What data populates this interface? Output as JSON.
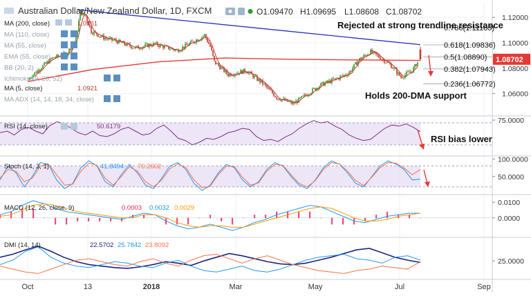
{
  "header": {
    "symbol": "Australian Dollar/New Zealand Dollar, 1D, FXCM",
    "ohlc": {
      "open": "O1.09470",
      "high": "H1.09695",
      "low": "L1.08608",
      "close": "C1.08702"
    }
  },
  "indicators": {
    "ma200": {
      "label": "MA (200, close)",
      "value": "1.0861"
    },
    "ma110": {
      "label": "MA (110, close)"
    },
    "ma55": {
      "label": "MA (55, close)"
    },
    "ema": {
      "label": "EMA (55, close)"
    },
    "bb": {
      "label": "BB (20, 2)"
    },
    "ichimoku": {
      "label": "Ichimoku (9, 26, 52)"
    },
    "ma5": {
      "label": "MA (5, close)",
      "value": "1.0921"
    },
    "maadx": {
      "label": "MA ADX (14, 14, 18, 34, close)"
    }
  },
  "annotations": {
    "trendline": "Rejected at strong trendline resistance",
    "support": "Holds 200-DMA support",
    "rsi": "RSI bias lower"
  },
  "colors": {
    "up": "#2a9d2a",
    "down": "#c0392b",
    "ma200": "#e53935",
    "ma5": "#c0392b",
    "trendline": "#1f2fbf",
    "rsi": "#7e2e84",
    "stochK": "#2196f3",
    "stochD": "#ff7043",
    "macd": "#2196f3",
    "signal": "#ff9800",
    "hist": "#e91e63",
    "adx": "#1a237e",
    "diPlus": "#2196f3",
    "diMinus": "#ff7043",
    "band": "#e6dcf3"
  },
  "chart_data": [
    {
      "type": "candlestick",
      "name": "Price",
      "x_ticks": [
        "Oct",
        "13",
        "2018",
        "Mar",
        "May",
        "Jul",
        "Sep"
      ],
      "y_ticks": [
        "1.12000",
        "1.10000",
        "1.08000",
        "1.06000"
      ],
      "ylim": [
        1.0435,
        1.1315
      ],
      "price_label": "1.08702",
      "fib_levels": [
        {
          "label": "0.786(1.11183)",
          "value": 1.11183
        },
        {
          "label": "0.618(1.09836)",
          "value": 1.09836
        },
        {
          "label": "0.5(1.08890)",
          "value": 1.0889
        },
        {
          "label": "0.382(1.07943)",
          "value": 1.07943
        },
        {
          "label": "0.236(1.06772)",
          "value": 1.06772
        }
      ],
      "price_path": [
        [
          0,
          1.071
        ],
        [
          8,
          1.079
        ],
        [
          18,
          1.088
        ],
        [
          28,
          1.091
        ],
        [
          35,
          1.103
        ],
        [
          38,
          1.124
        ],
        [
          42,
          1.121
        ],
        [
          46,
          1.109
        ],
        [
          55,
          1.104
        ],
        [
          65,
          1.101
        ],
        [
          78,
          1.096
        ],
        [
          92,
          1.099
        ],
        [
          108,
          1.094
        ],
        [
          120,
          1.101
        ],
        [
          128,
          1.106
        ],
        [
          132,
          1.097
        ],
        [
          135,
          1.085
        ],
        [
          145,
          1.075
        ],
        [
          158,
          1.078
        ],
        [
          170,
          1.068
        ],
        [
          180,
          1.057
        ],
        [
          192,
          1.052
        ],
        [
          200,
          1.058
        ],
        [
          212,
          1.067
        ],
        [
          222,
          1.071
        ],
        [
          232,
          1.076
        ],
        [
          240,
          1.087
        ],
        [
          248,
          1.093
        ],
        [
          254,
          1.089
        ],
        [
          262,
          1.083
        ],
        [
          270,
          1.073
        ],
        [
          278,
          1.078
        ],
        [
          285,
          1.09
        ],
        [
          292,
          1.097
        ],
        [
          297,
          1.094
        ],
        [
          300,
          1.087
        ]
      ],
      "ma200_path": [
        [
          0,
          1.0695
        ],
        [
          50,
          1.079
        ],
        [
          100,
          1.085
        ],
        [
          150,
          1.088
        ],
        [
          200,
          1.087
        ],
        [
          250,
          1.0865
        ],
        [
          300,
          1.0861
        ]
      ],
      "trendline": [
        [
          38,
          1.126
        ],
        [
          300,
          1.0985
        ]
      ],
      "last_candle": {
        "open": 1.0947,
        "high": 1.09695,
        "low": 1.08608,
        "close": 1.08702
      }
    },
    {
      "type": "line",
      "name": "RSI (14, close)",
      "current": "50.6179",
      "y_ticks": [
        "75.0000"
      ],
      "ylim": [
        10,
        80
      ],
      "band": [
        30,
        70
      ],
      "values": [
        52,
        55,
        48,
        58,
        62,
        55,
        50,
        65,
        72,
        68,
        60,
        52,
        48,
        55,
        47,
        45,
        50,
        58,
        62,
        55,
        48,
        50,
        60,
        66,
        55,
        42,
        38,
        30,
        35,
        42,
        40,
        45,
        52,
        55,
        60,
        58,
        45,
        38,
        40,
        36,
        44,
        50,
        60,
        68,
        74,
        70,
        72,
        64,
        58,
        48,
        42,
        38,
        40,
        50,
        60,
        66,
        64,
        68,
        62,
        54
      ]
    },
    {
      "type": "line",
      "name": "Stoch (14, 3, 1)",
      "current": [
        "41.8494",
        "70.2602"
      ],
      "y_ticks": [
        "100.0000",
        "50.0000"
      ],
      "ylim": [
        0,
        105
      ],
      "band": [
        20,
        80
      ],
      "series": [
        {
          "values": [
            40,
            80,
            60,
            20,
            50,
            90,
            85,
            40,
            15,
            30,
            75,
            95,
            80,
            35,
            20,
            55,
            85,
            60,
            25,
            15,
            45,
            80,
            90,
            70,
            30,
            10,
            25,
            60,
            85,
            75,
            40,
            20,
            35,
            70,
            90,
            80,
            50,
            25,
            15,
            40,
            75,
            95,
            85,
            60,
            30,
            20,
            50,
            80,
            95,
            85,
            70,
            40,
            42
          ]
        },
        {
          "values": [
            45,
            70,
            65,
            35,
            45,
            80,
            85,
            55,
            25,
            28,
            65,
            88,
            82,
            45,
            25,
            50,
            78,
            65,
            35,
            20,
            40,
            72,
            86,
            75,
            40,
            18,
            22,
            55,
            80,
            78,
            48,
            25,
            32,
            65,
            85,
            82,
            55,
            30,
            20,
            38,
            70,
            90,
            86,
            65,
            38,
            24,
            48,
            75,
            90,
            88,
            74,
            55,
            70
          ]
        }
      ]
    },
    {
      "type": "bar_line",
      "name": "MACD (12, 26, close, 9)",
      "current": [
        "0.0003",
        "0.0032",
        "0.0029"
      ],
      "y_ticks": [
        "0.0100",
        "0.0000"
      ],
      "ylim": [
        -0.012,
        0.014
      ],
      "series": [
        {
          "values": [
            0.002,
            0.004,
            0.008,
            0.011,
            0.009,
            0.006,
            0.004,
            0.003,
            0.002,
            0.001,
            0.0,
            -0.001,
            0.001,
            0.003,
            0.002,
            -0.002,
            -0.005,
            -0.007,
            -0.006,
            -0.004,
            -0.006,
            -0.008,
            -0.006,
            -0.003,
            -0.001,
            0.002,
            0.004,
            0.006,
            0.008,
            0.007,
            0.004,
            0.001,
            -0.002,
            -0.003,
            -0.001,
            0.001,
            0.002,
            0.003,
            0.003
          ]
        },
        {
          "values": [
            0.001,
            0.002,
            0.005,
            0.008,
            0.009,
            0.008,
            0.006,
            0.004,
            0.003,
            0.002,
            0.001,
            0.0,
            0.0,
            0.002,
            0.002,
            0.0,
            -0.003,
            -0.005,
            -0.006,
            -0.005,
            -0.005,
            -0.006,
            -0.006,
            -0.004,
            -0.002,
            0.0,
            0.002,
            0.004,
            0.006,
            0.007,
            0.006,
            0.003,
            0.0,
            -0.002,
            -0.002,
            -0.001,
            0.001,
            0.002,
            0.003
          ]
        }
      ]
    },
    {
      "type": "line",
      "name": "DMI (14, 14)",
      "current": [
        "22.5702",
        "25.7842",
        "23.8092"
      ],
      "y_ticks": [
        "25.0000"
      ],
      "ylim": [
        0,
        55
      ],
      "series": [
        {
          "values": [
            30,
            34,
            40,
            45,
            38,
            30,
            24,
            20,
            18,
            16,
            15,
            17,
            20,
            24,
            22,
            19,
            25,
            30,
            35,
            32,
            28,
            24,
            21,
            20,
            22,
            26,
            30,
            35,
            40,
            42,
            36,
            30,
            26,
            23
          ]
        },
        {
          "values": [
            20,
            26,
            38,
            44,
            30,
            22,
            18,
            16,
            20,
            24,
            22,
            18,
            16,
            22,
            26,
            18,
            12,
            10,
            14,
            18,
            12,
            10,
            14,
            20,
            26,
            30,
            32,
            34,
            28,
            26,
            22,
            30,
            32,
            26
          ]
        },
        {
          "values": [
            18,
            14,
            10,
            8,
            14,
            20,
            26,
            28,
            24,
            20,
            18,
            24,
            28,
            22,
            18,
            26,
            32,
            34,
            28,
            22,
            28,
            32,
            26,
            20,
            16,
            12,
            10,
            8,
            12,
            14,
            18,
            16,
            14,
            24
          ]
        }
      ]
    }
  ]
}
